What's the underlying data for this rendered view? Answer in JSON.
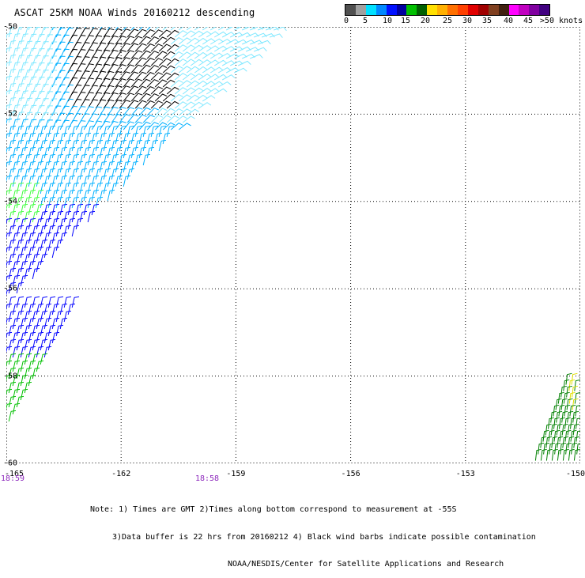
{
  "title": "ASCAT 25KM NOAA Winds 20160212 descending",
  "colors": {
    "background": "#ffffff",
    "grid": "#000000",
    "time_label": "#8e2bbd",
    "contamination": "#000000"
  },
  "color_scale": {
    "swatches": [
      "#505050",
      "#a0a0a0",
      "#00e0ff",
      "#0088ff",
      "#0010ff",
      "#0000a0",
      "#00c000",
      "#006000",
      "#ffe000",
      "#ffb000",
      "#ff7000",
      "#ff4000",
      "#e00000",
      "#a00000",
      "#804020",
      "#402010",
      "#ff00ff",
      "#c000c0",
      "#8000a0",
      "#400080"
    ],
    "labels": [
      "0",
      "5",
      "10",
      "15",
      "20",
      "25",
      "30",
      "35",
      "40",
      "45",
      ">50 knots"
    ]
  },
  "map": {
    "lat_labels": [
      "-50",
      "-52",
      "-54",
      "-56",
      "-58",
      "-60"
    ],
    "lon_labels": [
      "-165",
      "-162",
      "-159",
      "-156",
      "-153",
      "-150"
    ],
    "time_labels": [
      "18:59",
      "18:58"
    ]
  },
  "wind_barbs": {
    "swaths": [
      {
        "name": "west-swath-contaminated",
        "color": "#000000",
        "lat_range": [
          -50.2,
          -51.8
        ],
        "lon_range": [
          -163.5,
          -161.0
        ]
      },
      {
        "name": "west-swath-light",
        "color": "#80e8ff",
        "lat_range": [
          -50.0,
          -52.2
        ],
        "lon_range": [
          -165.0,
          -157.5
        ]
      },
      {
        "name": "west-swath-moderate",
        "color": "#00b0ff",
        "lat_range": [
          -51.0,
          -54.0
        ],
        "lon_range": [
          -165.0,
          -158.5
        ]
      },
      {
        "name": "west-swath-strong",
        "color": "#0000ff",
        "lat_range": [
          -52.0,
          -58.0
        ],
        "lon_range": [
          -165.0,
          -160.0
        ]
      },
      {
        "name": "west-swath-green",
        "color": "#00c000",
        "lat_range": [
          -57.5,
          -59.2
        ],
        "lon_range": [
          -165.0,
          -163.5
        ]
      },
      {
        "name": "east-swath-green",
        "color": "#008000",
        "lat_range": [
          -58.2,
          -60.2
        ],
        "lon_range": [
          -151.3,
          -150.0
        ]
      }
    ]
  },
  "notes": [
    "Note: 1) Times are GMT 2)Times along bottom correspond to measurement at -55S",
    "3)Data buffer is 22 hrs from 20160212 4) Black wind barbs indicate possible contamination",
    "NOAA/NESDIS/Center for Satellite Applications and Research"
  ]
}
